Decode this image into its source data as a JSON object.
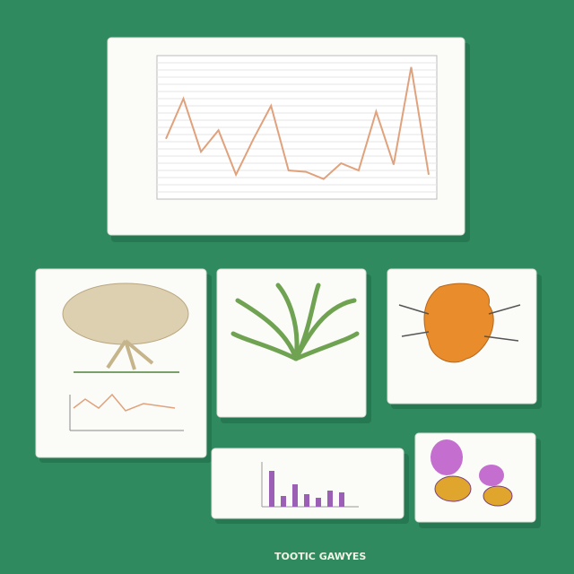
{
  "caption": "TOOTIC GAWYES",
  "chart_data": [
    {
      "type": "line",
      "color": "#e0a27c",
      "values": [
        42,
        70,
        33,
        48,
        17,
        42,
        65,
        20,
        19,
        14,
        25,
        20,
        61,
        24,
        92,
        17
      ],
      "ylim": [
        0,
        100
      ],
      "grid": true
    },
    {
      "type": "bar",
      "color": "#9b5fb5",
      "values": [
        40,
        12,
        25,
        14,
        10,
        18,
        16
      ],
      "ylim": [
        0,
        50
      ]
    }
  ]
}
